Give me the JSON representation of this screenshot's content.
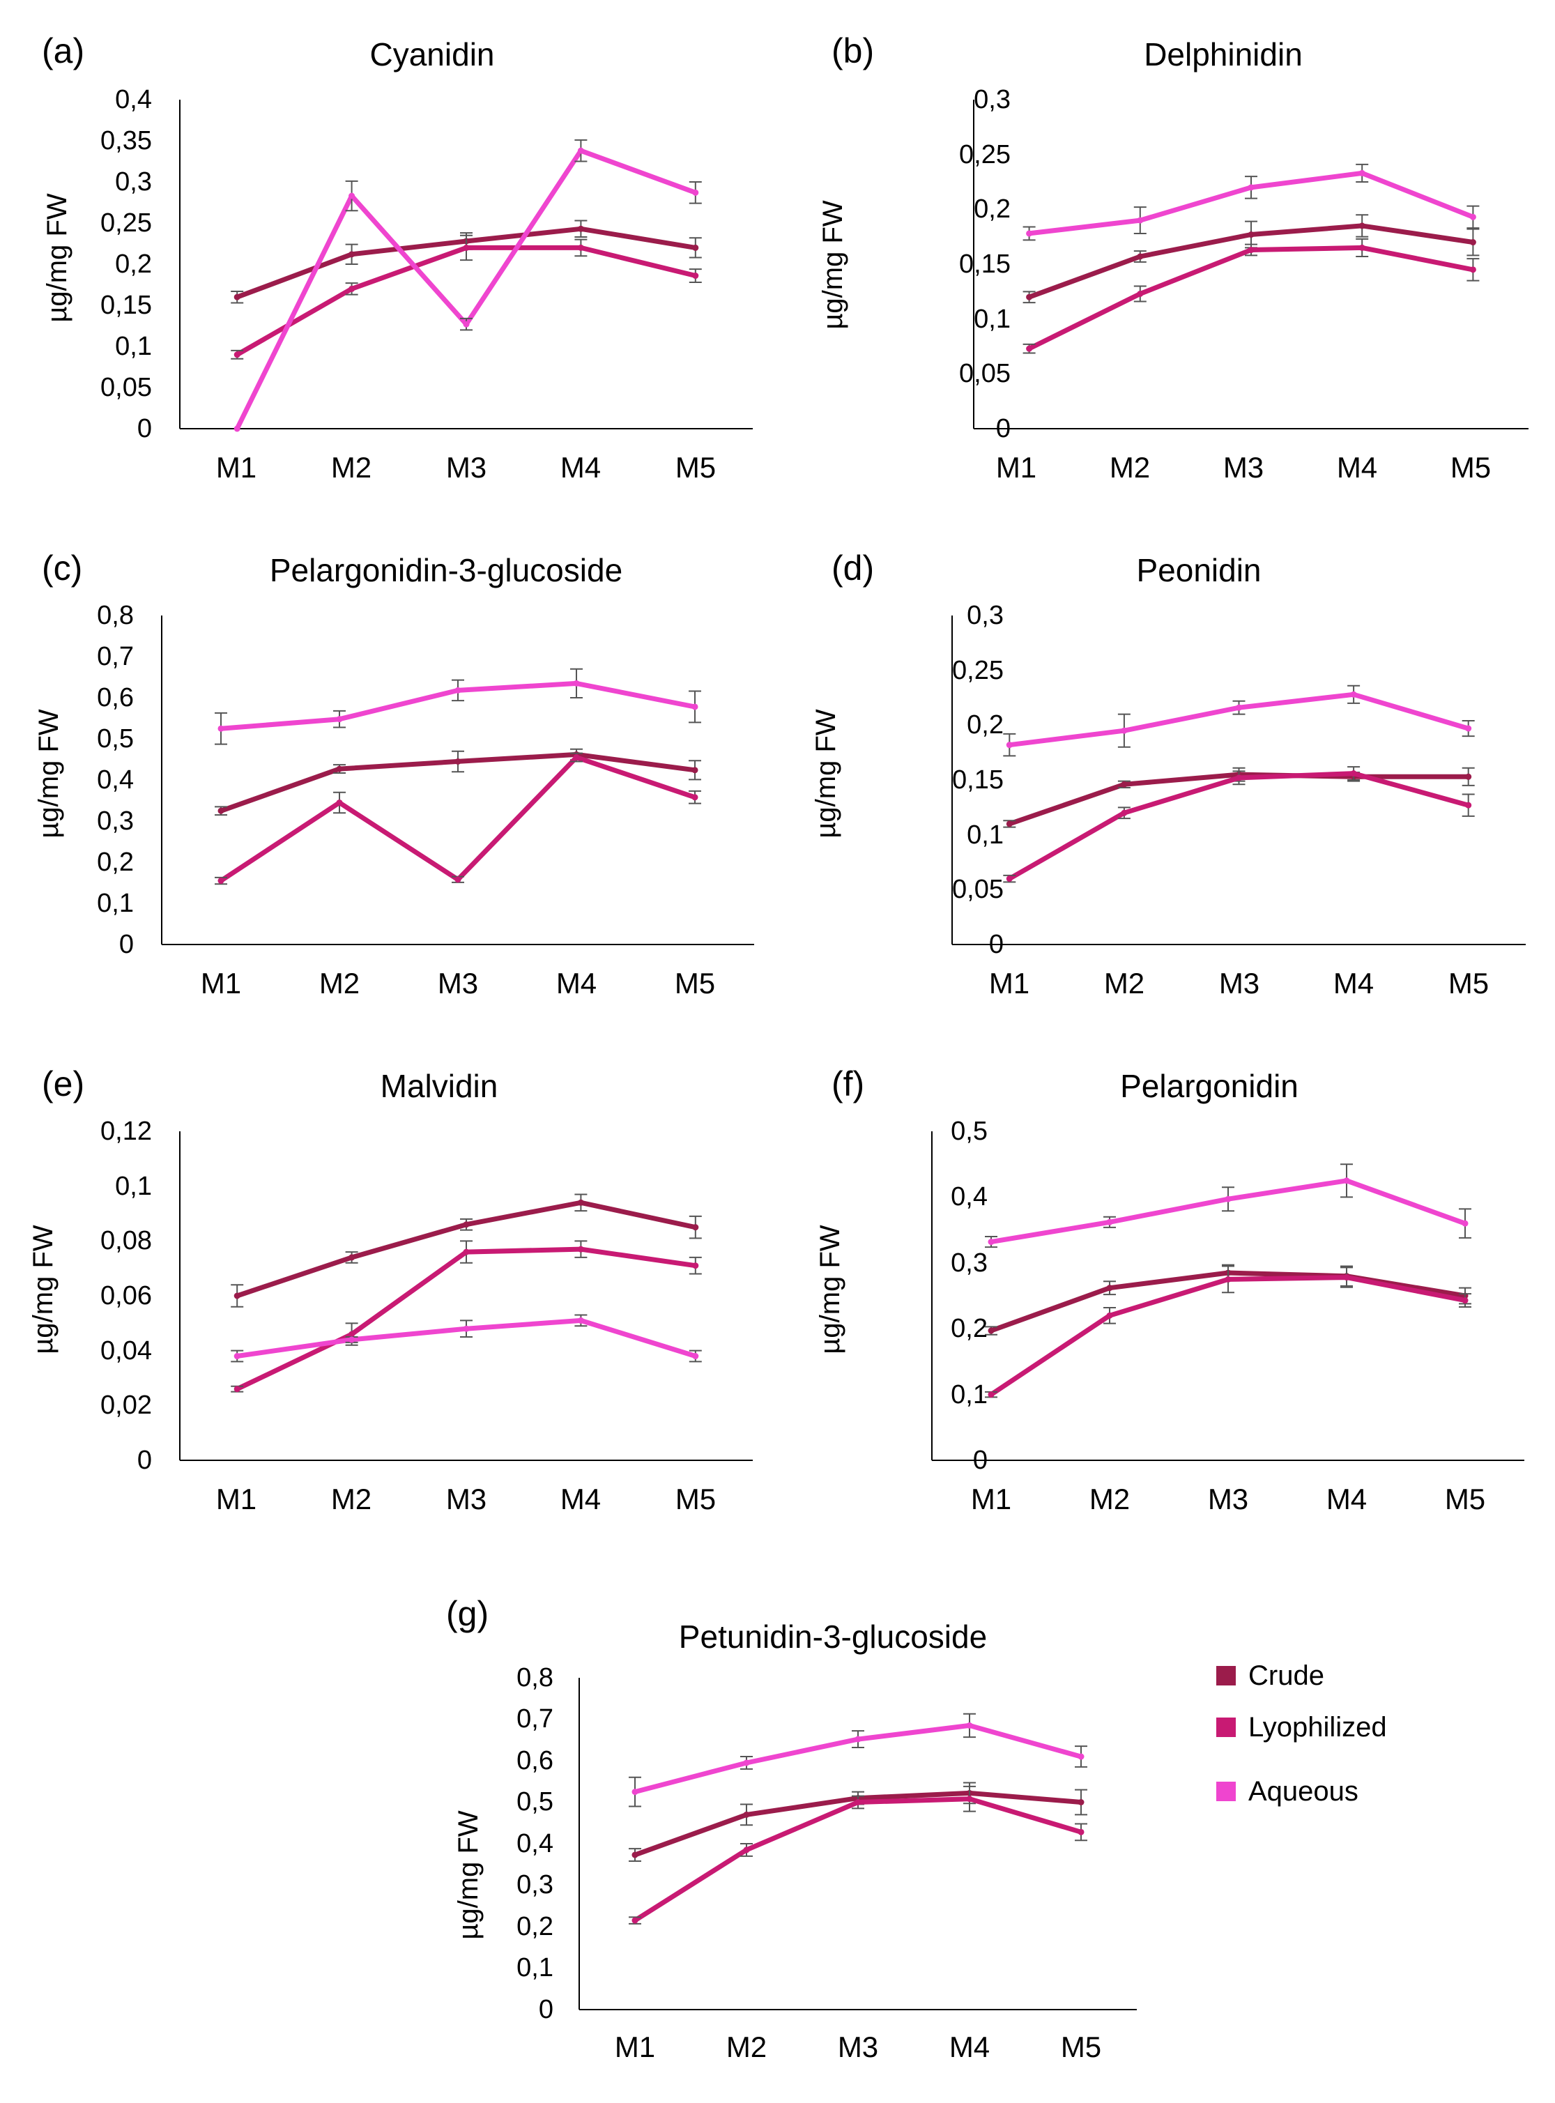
{
  "legend": {
    "items": [
      {
        "name": "Crude",
        "color": "#9b1c4b"
      },
      {
        "name": "Lyophilized",
        "color": "#c81a73"
      },
      {
        "name": "Aqueous",
        "color": "#ef45cf"
      }
    ]
  },
  "chart_data": [
    {
      "type": "line",
      "panel_label": "(a)",
      "title": "Cyanidin",
      "xlabel": "",
      "ylabel": "µg/mg FW",
      "categories": [
        "M1",
        "M2",
        "M3",
        "M4",
        "M5"
      ],
      "ylim": [
        0,
        0.4
      ],
      "yticks": [
        "0",
        "0,05",
        "0,1",
        "0,15",
        "0,2",
        "0,25",
        "0,3",
        "0,35",
        "0,4"
      ],
      "series": [
        {
          "name": "Crude",
          "values": [
            0.16,
            0.212,
            0.228,
            0.243,
            0.22
          ],
          "errors": [
            0.007,
            0.012,
            0.01,
            0.01,
            0.012
          ]
        },
        {
          "name": "Lyophilized",
          "values": [
            0.09,
            0.17,
            0.22,
            0.22,
            0.186
          ],
          "errors": [
            0.005,
            0.007,
            0.015,
            0.01,
            0.008
          ]
        },
        {
          "name": "Aqueous",
          "values": [
            0.0,
            0.283,
            0.127,
            0.338,
            0.287
          ],
          "errors": [
            0.0,
            0.018,
            0.007,
            0.013,
            0.013
          ]
        }
      ]
    },
    {
      "type": "line",
      "panel_label": "(b)",
      "title": "Delphinidin",
      "xlabel": "",
      "ylabel": "µg/mg FW",
      "categories": [
        "M1",
        "M2",
        "M3",
        "M4",
        "M5"
      ],
      "ylim": [
        0,
        0.3
      ],
      "yticks": [
        "0",
        "0,05",
        "0,1",
        "0,15",
        "0,2",
        "0,25",
        "0,3"
      ],
      "series": [
        {
          "name": "Crude",
          "values": [
            0.12,
            0.157,
            0.177,
            0.185,
            0.17
          ],
          "errors": [
            0.005,
            0.005,
            0.012,
            0.01,
            0.012
          ]
        },
        {
          "name": "Lyophilized",
          "values": [
            0.073,
            0.123,
            0.163,
            0.165,
            0.145
          ],
          "errors": [
            0.004,
            0.007,
            0.005,
            0.008,
            0.01
          ]
        },
        {
          "name": "Aqueous",
          "values": [
            0.178,
            0.19,
            0.22,
            0.233,
            0.193
          ],
          "errors": [
            0.006,
            0.012,
            0.01,
            0.008,
            0.01
          ]
        }
      ]
    },
    {
      "type": "line",
      "panel_label": "(c)",
      "title": "Pelargonidin-3-glucoside",
      "xlabel": "",
      "ylabel": "µg/mg FW",
      "categories": [
        "M1",
        "M2",
        "M3",
        "M4",
        "M5"
      ],
      "ylim": [
        0,
        0.8
      ],
      "yticks": [
        "0",
        "0,1",
        "0,2",
        "0,3",
        "0,4",
        "0,5",
        "0,6",
        "0,7",
        "0,8"
      ],
      "series": [
        {
          "name": "Crude",
          "values": [
            0.325,
            0.427,
            0.445,
            0.462,
            0.424
          ],
          "errors": [
            0.01,
            0.01,
            0.025,
            0.013,
            0.023
          ]
        },
        {
          "name": "Lyophilized",
          "values": [
            0.155,
            0.345,
            0.158,
            0.455,
            0.358
          ],
          "errors": [
            0.008,
            0.025,
            0.007,
            0.01,
            0.015
          ]
        },
        {
          "name": "Aqueous",
          "values": [
            0.525,
            0.548,
            0.618,
            0.635,
            0.578
          ],
          "errors": [
            0.038,
            0.02,
            0.025,
            0.035,
            0.038
          ]
        }
      ]
    },
    {
      "type": "line",
      "panel_label": "(d)",
      "title": "Peonidin",
      "xlabel": "",
      "ylabel": "µg/mg FW",
      "categories": [
        "M1",
        "M2",
        "M3",
        "M4",
        "M5"
      ],
      "ylim": [
        0,
        0.3
      ],
      "yticks": [
        "0",
        "0,05",
        "0,1",
        "0,15",
        "0,2",
        "0,25",
        "0,3"
      ],
      "series": [
        {
          "name": "Crude",
          "values": [
            0.11,
            0.146,
            0.155,
            0.153,
            0.153
          ],
          "errors": [
            0.003,
            0.003,
            0.006,
            0.004,
            0.008
          ]
        },
        {
          "name": "Lyophilized",
          "values": [
            0.06,
            0.12,
            0.152,
            0.156,
            0.127
          ],
          "errors": [
            0.003,
            0.005,
            0.006,
            0.006,
            0.01
          ]
        },
        {
          "name": "Aqueous",
          "values": [
            0.182,
            0.195,
            0.216,
            0.228,
            0.197
          ],
          "errors": [
            0.01,
            0.015,
            0.006,
            0.008,
            0.007
          ]
        }
      ]
    },
    {
      "type": "line",
      "panel_label": "(e)",
      "title": "Malvidin",
      "xlabel": "",
      "ylabel": "µg/mg FW",
      "categories": [
        "M1",
        "M2",
        "M3",
        "M4",
        "M5"
      ],
      "ylim": [
        0,
        0.12
      ],
      "yticks": [
        "0",
        "0,02",
        "0,04",
        "0,06",
        "0,08",
        "0,1",
        "0,12"
      ],
      "series": [
        {
          "name": "Crude",
          "values": [
            0.06,
            0.074,
            0.086,
            0.094,
            0.085
          ],
          "errors": [
            0.004,
            0.002,
            0.002,
            0.003,
            0.004
          ]
        },
        {
          "name": "Lyophilized",
          "values": [
            0.026,
            0.046,
            0.076,
            0.077,
            0.071
          ],
          "errors": [
            0.001,
            0.004,
            0.004,
            0.003,
            0.003
          ]
        },
        {
          "name": "Aqueous",
          "values": [
            0.038,
            0.044,
            0.048,
            0.051,
            0.038
          ],
          "errors": [
            0.002,
            0.001,
            0.003,
            0.002,
            0.002
          ]
        }
      ]
    },
    {
      "type": "line",
      "panel_label": "(f)",
      "title": "Pelargonidin",
      "xlabel": "",
      "ylabel": "µg/mg FW",
      "categories": [
        "M1",
        "M2",
        "M3",
        "M4",
        "M5"
      ],
      "ylim": [
        0,
        0.5
      ],
      "yticks": [
        "0",
        "0,1",
        "0,2",
        "0,3",
        "0,4",
        "0,5"
      ],
      "series": [
        {
          "name": "Crude",
          "values": [
            0.197,
            0.262,
            0.285,
            0.28,
            0.25
          ],
          "errors": [
            0.006,
            0.01,
            0.012,
            0.015,
            0.012
          ]
        },
        {
          "name": "Lyophilized",
          "values": [
            0.1,
            0.22,
            0.275,
            0.278,
            0.243
          ],
          "errors": [
            0.004,
            0.012,
            0.02,
            0.015,
            0.01
          ]
        },
        {
          "name": "Aqueous",
          "values": [
            0.332,
            0.362,
            0.397,
            0.425,
            0.36
          ],
          "errors": [
            0.008,
            0.008,
            0.018,
            0.025,
            0.022
          ]
        }
      ]
    },
    {
      "type": "line",
      "panel_label": "(g)",
      "title": "Petunidin-3-glucoside",
      "xlabel": "",
      "ylabel": "µg/mg FW",
      "categories": [
        "M1",
        "M2",
        "M3",
        "M4",
        "M5"
      ],
      "ylim": [
        0,
        0.8
      ],
      "yticks": [
        "0",
        "0,1",
        "0,2",
        "0,3",
        "0,4",
        "0,5",
        "0,6",
        "0,7",
        "0,8"
      ],
      "series": [
        {
          "name": "Crude",
          "values": [
            0.373,
            0.47,
            0.51,
            0.522,
            0.5
          ],
          "errors": [
            0.015,
            0.025,
            0.015,
            0.025,
            0.03
          ]
        },
        {
          "name": "Lyophilized",
          "values": [
            0.215,
            0.385,
            0.5,
            0.508,
            0.428
          ],
          "errors": [
            0.008,
            0.015,
            0.015,
            0.03,
            0.02
          ]
        },
        {
          "name": "Aqueous",
          "values": [
            0.525,
            0.595,
            0.652,
            0.685,
            0.61
          ],
          "errors": [
            0.035,
            0.015,
            0.02,
            0.028,
            0.025
          ]
        }
      ]
    }
  ]
}
